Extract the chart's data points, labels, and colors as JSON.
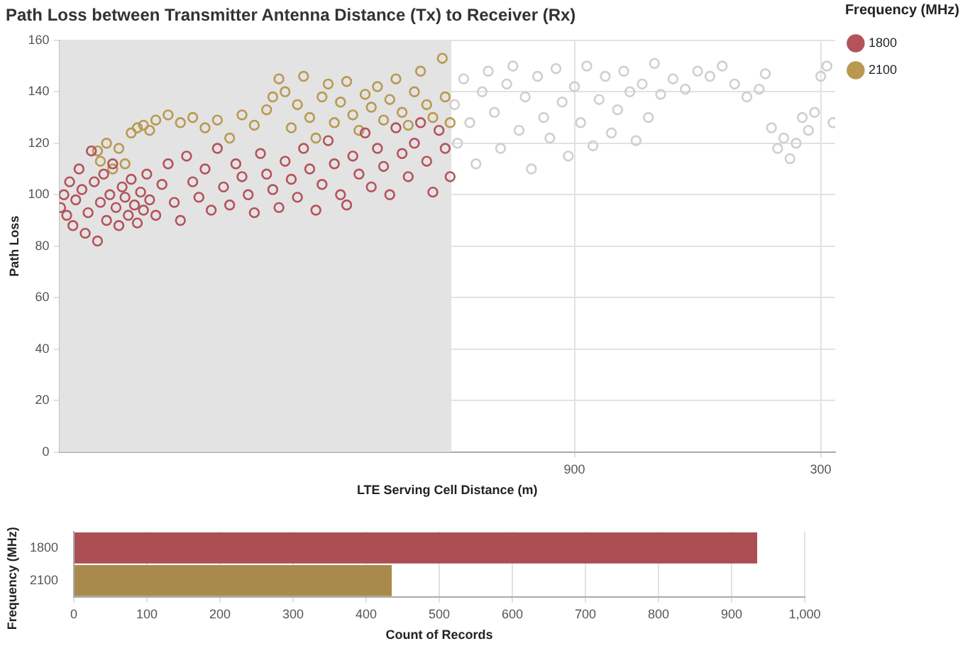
{
  "chart_data": [
    {
      "type": "scatter",
      "title": "Path Loss between Transmitter Antenna Distance (Tx) to Receiver (Rx)",
      "xlabel": "LTE Serving Cell Distance (m)",
      "ylabel": "Path Loss",
      "legend_title": "Frequency (MHz)",
      "legend": "right",
      "marker": "circle",
      "grid": true,
      "xlim": [
        2155,
        265
      ],
      "xticks": [
        900,
        300
      ],
      "ylim": [
        0,
        160
      ],
      "yticks": [
        0,
        20,
        40,
        60,
        80,
        100,
        120,
        140,
        160
      ],
      "bands": [
        {
          "axis": "x",
          "from": 2155,
          "to": 1200,
          "color": "#e3e3e3"
        }
      ],
      "series": [
        {
          "name": "1800",
          "color": "#b5525a",
          "x": [
            2152,
            2144,
            2137,
            2130,
            2122,
            2115,
            2107,
            2100,
            2092,
            2085,
            2077,
            2070,
            2062,
            2055,
            2047,
            2040,
            2032,
            2025,
            2017,
            2010,
            2002,
            1995,
            1987,
            1980,
            1972,
            1965,
            1957,
            1950,
            1942,
            1935,
            1920,
            1905,
            1890,
            1875,
            1860,
            1845,
            1830,
            1815,
            1800,
            1785,
            1770,
            1755,
            1740,
            1725,
            1710,
            1695,
            1680,
            1665,
            1650,
            1635,
            1620,
            1605,
            1590,
            1575,
            1560,
            1545,
            1530,
            1515,
            1500,
            1485,
            1470,
            1455,
            1440,
            1425,
            1410,
            1395,
            1380,
            1365,
            1350,
            1335,
            1320,
            1305,
            1290,
            1275,
            1260,
            1245,
            1230,
            1215,
            1203
          ],
          "values": [
            95,
            100,
            92,
            105,
            88,
            98,
            110,
            102,
            85,
            93,
            117,
            105,
            82,
            97,
            108,
            90,
            100,
            112,
            95,
            88,
            103,
            99,
            92,
            106,
            96,
            89,
            101,
            94,
            108,
            98,
            92,
            104,
            112,
            97,
            90,
            115,
            105,
            99,
            110,
            94,
            118,
            103,
            96,
            112,
            107,
            100,
            93,
            116,
            108,
            102,
            95,
            113,
            106,
            99,
            118,
            110,
            94,
            104,
            121,
            112,
            100,
            96,
            115,
            108,
            124,
            103,
            118,
            111,
            100,
            126,
            116,
            107,
            120,
            128,
            113,
            101,
            125,
            118,
            107
          ]
        },
        {
          "name": "2100",
          "color": "#b8994f",
          "x": [
            2062,
            2055,
            2040,
            2025,
            2010,
            1995,
            1980,
            1965,
            1950,
            1935,
            1920,
            1890,
            1860,
            1830,
            1800,
            1770,
            1740,
            1710,
            1680,
            1650,
            1635,
            1620,
            1605,
            1590,
            1575,
            1560,
            1545,
            1530,
            1515,
            1500,
            1485,
            1470,
            1455,
            1440,
            1425,
            1410,
            1395,
            1380,
            1365,
            1350,
            1335,
            1320,
            1305,
            1290,
            1275,
            1260,
            1245,
            1222,
            1215,
            1203
          ],
          "values": [
            117,
            113,
            120,
            110,
            118,
            112,
            124,
            126,
            127,
            125,
            129,
            131,
            128,
            130,
            126,
            129,
            122,
            131,
            127,
            133,
            138,
            145,
            140,
            126,
            135,
            146,
            130,
            122,
            138,
            143,
            128,
            136,
            144,
            131,
            125,
            139,
            134,
            142,
            129,
            137,
            145,
            132,
            127,
            140,
            148,
            135,
            130,
            153,
            138,
            128
          ]
        },
        {
          "color": "#cfcfcf",
          "x": [
            1192,
            1185,
            1170,
            1155,
            1140,
            1125,
            1110,
            1095,
            1080,
            1065,
            1050,
            1035,
            1020,
            1005,
            990,
            975,
            960,
            945,
            930,
            915,
            900,
            885,
            870,
            855,
            840,
            825,
            810,
            795,
            780,
            765,
            750,
            735,
            720,
            705,
            690,
            660,
            630,
            600,
            570,
            540,
            510,
            480,
            450,
            435,
            420,
            405,
            390,
            375,
            360,
            345,
            330,
            315,
            300,
            285,
            270
          ],
          "values": [
            135,
            120,
            145,
            128,
            112,
            140,
            148,
            132,
            118,
            143,
            150,
            125,
            138,
            110,
            146,
            130,
            122,
            149,
            136,
            115,
            142,
            128,
            150,
            119,
            137,
            146,
            124,
            133,
            148,
            140,
            121,
            143,
            130,
            151,
            139,
            145,
            141,
            148,
            146,
            150,
            143,
            138,
            141,
            147,
            126,
            118,
            122,
            114,
            120,
            130,
            125,
            132,
            146,
            150,
            128
          ]
        }
      ]
    },
    {
      "type": "bar",
      "orientation": "horizontal",
      "xlabel": "Count of Records",
      "ylabel": "Frequency (MHz)",
      "categories": [
        "1800",
        "2100"
      ],
      "values": [
        935,
        435
      ],
      "colors": [
        "#ab4f52",
        "#a88a4c"
      ],
      "xlim": [
        0,
        1000
      ],
      "xticks": [
        0,
        100,
        200,
        300,
        400,
        500,
        600,
        700,
        800,
        900,
        {
          "value": 1000,
          "label": "1,000"
        }
      ],
      "grid": "x"
    }
  ]
}
